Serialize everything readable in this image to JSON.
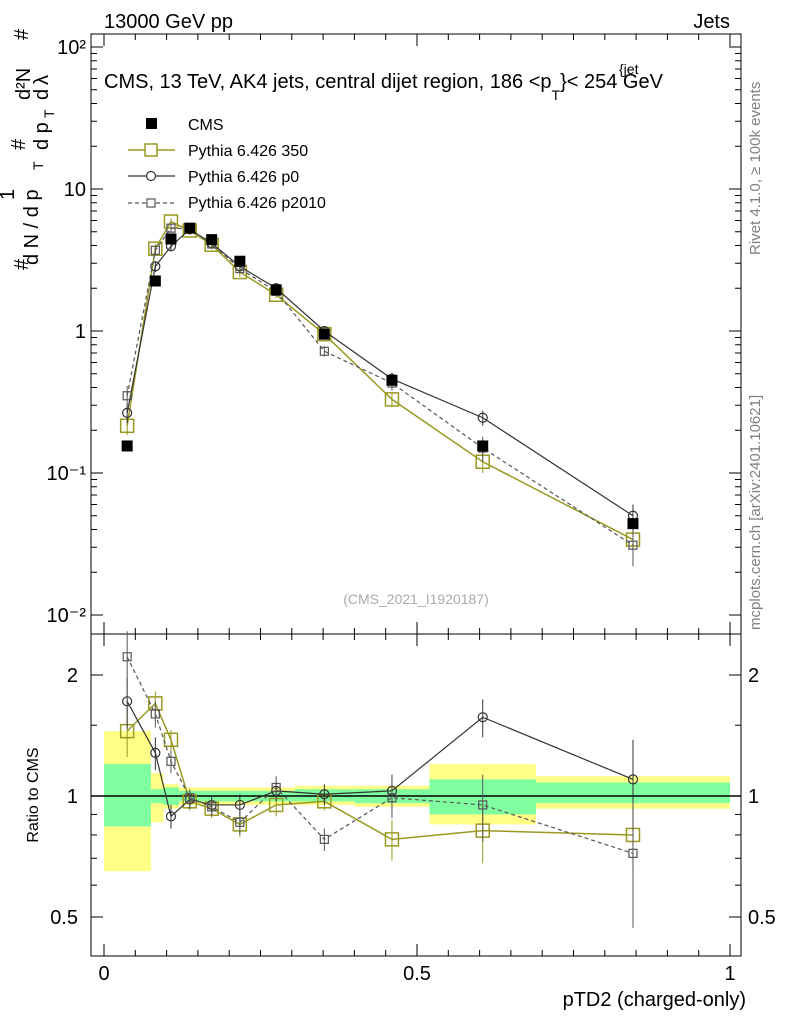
{
  "header": {
    "left": "13000 GeV pp",
    "right": "Jets",
    "title": "CMS, 13 TeV, AK4 jets, central dijet region, 186 <p",
    "title_sub": "T",
    "title_sup": "{jet",
    "title_end": "}< 254 GeV",
    "watermark": "(CMS_2021_I1920187)",
    "side_rivet": "Rivet 4.1.0, ≥ 100k events",
    "side_mcplots": "mcplots.cern.ch [arXiv:2401.10621]"
  },
  "axes": {
    "ylabel_main": "1/N dN/dp_T dlambda (rendered as ROOT-style stacked label)",
    "ylabel_ratio": "Ratio to CMS",
    "xlabel": "pTD2 (charged-only)",
    "x_ticks": [
      "0",
      "0.5",
      "1"
    ],
    "main_ticks": [
      "10⁻²",
      "10⁻¹",
      "1",
      "10",
      "10²"
    ],
    "ratio_ticks": [
      "0.5",
      "1",
      "2"
    ]
  },
  "colors": {
    "cms": "#000000",
    "p350": "#999922",
    "p0": "#333333",
    "p2010": "#555555",
    "band_inner": "#7fff9f",
    "band_outer": "#ffff88"
  },
  "chart_data": {
    "type": "line",
    "title": "CMS, 13 TeV, AK4 jets, central dijet region, 186 < pT(jet) < 254 GeV",
    "xlabel": "pTD2 (charged-only)",
    "ylabel": "1/N dN/dλ",
    "xlim": [
      0,
      1
    ],
    "ylim": [
      0.008,
      130
    ],
    "yscale": "log",
    "ratio_ylim": [
      0.4,
      2.3
    ],
    "bins": [
      [
        0,
        0.075
      ],
      [
        0.075,
        0.095
      ],
      [
        0.095,
        0.12
      ],
      [
        0.12,
        0.155
      ],
      [
        0.155,
        0.19
      ],
      [
        0.19,
        0.245
      ],
      [
        0.245,
        0.305
      ],
      [
        0.305,
        0.4
      ],
      [
        0.4,
        0.52
      ],
      [
        0.52,
        0.69
      ],
      [
        0.69,
        1.0
      ]
    ],
    "x": [
      0.037,
      0.082,
      0.107,
      0.137,
      0.172,
      0.217,
      0.275,
      0.352,
      0.46,
      0.605,
      0.845
    ],
    "series": [
      {
        "name": "CMS",
        "style": "filled-square",
        "values": [
          0.155,
          2.25,
          4.45,
          5.3,
          4.4,
          3.1,
          1.95,
          0.95,
          0.45,
          0.155,
          0.044
        ],
        "errors": [
          0.01,
          0.1,
          0.2,
          0.2,
          0.2,
          0.12,
          0.08,
          0.05,
          0.04,
          0.015,
          0.004
        ],
        "ratio": [
          1,
          1,
          1,
          1,
          1,
          1,
          1,
          1,
          1,
          1,
          1
        ]
      },
      {
        "name": "Pythia 6.426 350",
        "style": "open-square-solid",
        "values": [
          0.215,
          3.8,
          5.9,
          5.1,
          4.05,
          2.6,
          1.8,
          0.95,
          0.33,
          0.12,
          0.034
        ],
        "errors": [
          0.03,
          0.3,
          0.3,
          0.3,
          0.3,
          0.2,
          0.1,
          0.07,
          0.04,
          0.02,
          0.006
        ],
        "ratio": [
          1.45,
          1.7,
          1.38,
          0.97,
          0.93,
          0.85,
          0.95,
          0.97,
          0.78,
          0.82,
          0.8
        ],
        "ratio_errors": [
          0.2,
          0.12,
          0.08,
          0.05,
          0.05,
          0.06,
          0.06,
          0.05,
          0.09,
          0.14,
          0.14
        ]
      },
      {
        "name": "Pythia 6.426 p0",
        "style": "open-circle-solid",
        "values": [
          0.265,
          2.85,
          3.95,
          5.2,
          4.15,
          2.85,
          2.0,
          1.0,
          0.46,
          0.245,
          0.05
        ],
        "errors": [
          0.04,
          0.25,
          0.3,
          0.3,
          0.3,
          0.2,
          0.12,
          0.07,
          0.05,
          0.03,
          0.01
        ],
        "ratio": [
          1.72,
          1.28,
          0.89,
          0.98,
          0.95,
          0.95,
          1.03,
          1.01,
          1.03,
          1.57,
          1.1
        ],
        "ratio_errors": [
          0.25,
          0.12,
          0.06,
          0.05,
          0.05,
          0.06,
          0.06,
          0.06,
          0.1,
          0.17,
          0.28
        ]
      },
      {
        "name": "Pythia 6.426 p2010",
        "style": "open-square-dashed",
        "values": [
          0.35,
          3.7,
          5.3,
          5.25,
          4.1,
          2.75,
          1.9,
          0.72,
          0.43,
          0.15,
          0.031
        ],
        "errors": [
          0.06,
          0.3,
          0.35,
          0.3,
          0.3,
          0.2,
          0.12,
          0.06,
          0.05,
          0.03,
          0.009
        ],
        "ratio": [
          2.22,
          1.6,
          1.22,
          0.99,
          0.94,
          0.86,
          1.05,
          0.78,
          0.99,
          0.95,
          0.72
        ],
        "ratio_errors": [
          0.35,
          0.12,
          0.08,
          0.05,
          0.05,
          0.06,
          0.07,
          0.05,
          0.11,
          0.18,
          0.25
        ]
      }
    ],
    "ratio_band_inner": [
      [
        0.84,
        1.2
      ],
      [
        0.96,
        1.04
      ],
      [
        0.95,
        1.05
      ],
      [
        0.97,
        1.03
      ],
      [
        0.97,
        1.03
      ],
      [
        0.97,
        1.03
      ],
      [
        0.97,
        1.03
      ],
      [
        0.97,
        1.04
      ],
      [
        0.96,
        1.04
      ],
      [
        0.9,
        1.1
      ],
      [
        0.96,
        1.08
      ]
    ],
    "ratio_band_outer": [
      [
        0.65,
        1.45
      ],
      [
        0.86,
        1.14
      ],
      [
        0.93,
        1.07
      ],
      [
        0.95,
        1.05
      ],
      [
        0.95,
        1.05
      ],
      [
        0.95,
        1.05
      ],
      [
        0.95,
        1.05
      ],
      [
        0.95,
        1.06
      ],
      [
        0.94,
        1.06
      ],
      [
        0.85,
        1.2
      ],
      [
        0.93,
        1.12
      ]
    ]
  }
}
